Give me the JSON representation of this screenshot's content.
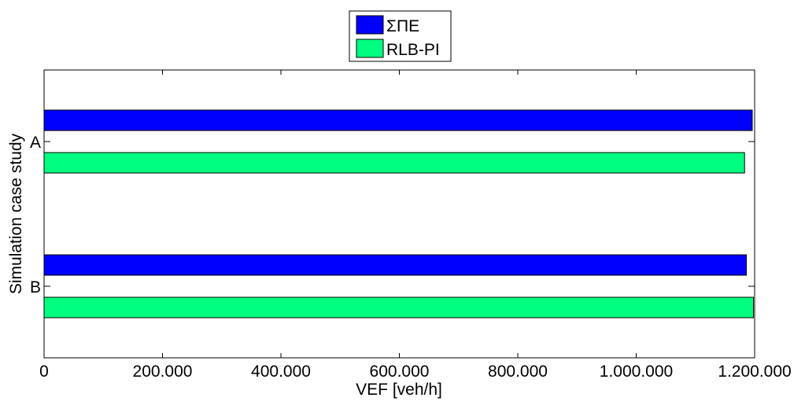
{
  "chart_data": {
    "type": "bar",
    "orientation": "horizontal",
    "categories": [
      "A",
      "B"
    ],
    "series": [
      {
        "name": "ΣΠΕ",
        "color": "#0000ff",
        "values": [
          1196000,
          1186000
        ]
      },
      {
        "name": "RLB-PI",
        "color": "#00ff80",
        "values": [
          1183000,
          1198000
        ]
      }
    ],
    "xlabel": "VEF [veh/h]",
    "ylabel": "Simulation case study",
    "xlim": [
      0,
      1200000
    ],
    "xticks": [
      0,
      200000,
      400000,
      600000,
      800000,
      1000000,
      1200000
    ],
    "xtick_labels": [
      "0",
      "200.000",
      "400.000",
      "600.000",
      "800.000",
      "1.000.000",
      "1.200.000"
    ],
    "grid": false,
    "legend_position": "top-center"
  }
}
